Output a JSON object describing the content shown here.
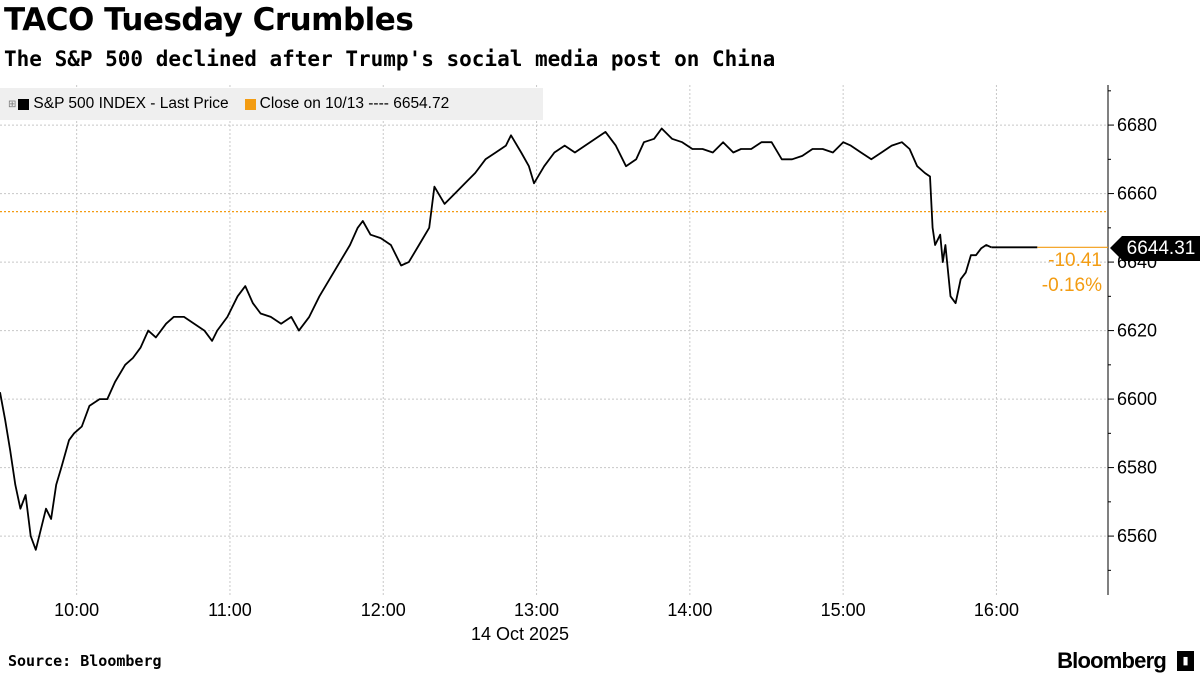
{
  "header": {
    "title": "TACO Tuesday Crumbles",
    "subtitle": "The S&P 500 declined after Trump's social media post on China"
  },
  "footer": {
    "source": "Source: Bloomberg",
    "logo": "Bloomberg"
  },
  "colors": {
    "series": "#000000",
    "reference": "#f39c12",
    "grid": "#cccccc",
    "legend_bg": "#efefef"
  },
  "chart_data": {
    "type": "line",
    "title": "TACO Tuesday Crumbles",
    "subtitle": "The S&P 500 declined after Trump's social media post on China",
    "xlabel": "14 Oct 2025",
    "ylabel": "",
    "x_unit": "minutes since 09:30",
    "xlim": [
      0,
      406
    ],
    "ylim": [
      6542.8,
      6691.7
    ],
    "grid": true,
    "legend_position": "top-left",
    "legend": [
      "S&P 500 INDEX - Last Price",
      "Close on 10/13 ---- 6654.72"
    ],
    "x_ticks": [
      {
        "label": "10:00",
        "t": 30
      },
      {
        "label": "11:00",
        "t": 90
      },
      {
        "label": "12:00",
        "t": 150
      },
      {
        "label": "13:00",
        "t": 210
      },
      {
        "label": "14:00",
        "t": 270
      },
      {
        "label": "15:00",
        "t": 330
      },
      {
        "label": "16:00",
        "t": 390
      }
    ],
    "y_ticks": [
      6560,
      6580,
      6600,
      6620,
      6640,
      6660,
      6680
    ],
    "reference_line": {
      "name": "Close on 10/13",
      "value": 6654.72
    },
    "last_price": {
      "value": "6644.31",
      "t_end": 406
    },
    "change": {
      "abs": "-10.41",
      "pct": "-0.16%"
    },
    "series": [
      {
        "name": "S&P 500 INDEX - Last Price",
        "t": [
          0,
          2,
          4,
          6,
          8,
          10,
          12,
          14,
          18,
          20,
          22,
          24,
          27,
          29,
          32,
          35,
          39,
          42,
          45,
          49,
          52,
          55,
          58,
          61,
          65,
          68,
          72,
          76,
          80,
          83,
          85,
          89,
          93,
          96,
          99,
          102,
          106,
          110,
          114,
          117,
          121,
          125,
          129,
          133,
          137,
          140,
          142,
          145,
          149,
          153,
          157,
          160,
          164,
          168,
          170,
          174,
          178,
          182,
          186,
          190,
          194,
          198,
          200,
          204,
          207,
          209,
          213,
          217,
          221,
          225,
          229,
          233,
          237,
          241,
          245,
          249,
          252,
          256,
          259,
          263,
          267,
          271,
          275,
          279,
          283,
          287,
          290,
          294,
          298,
          302,
          306,
          310,
          314,
          318,
          322,
          326,
          330,
          333,
          337,
          341,
          345,
          349,
          353,
          356,
          359,
          362,
          364,
          365,
          366,
          368,
          369,
          370,
          372,
          374,
          376,
          378,
          380,
          382,
          384,
          386,
          388
        ],
        "values": [
          6602,
          6594,
          6585,
          6575,
          6568,
          6572,
          6560,
          6556,
          6568,
          6565,
          6575,
          6580,
          6588,
          6590,
          6592,
          6598,
          6600,
          6600,
          6605,
          6610,
          6612,
          6615,
          6620,
          6618,
          6622,
          6624,
          6624,
          6622,
          6620,
          6617,
          6620,
          6624,
          6630,
          6633,
          6628,
          6625,
          6624,
          6622,
          6624,
          6620,
          6624,
          6630,
          6635,
          6640,
          6645,
          6650,
          6652,
          6648,
          6647,
          6645,
          6639,
          6640,
          6645,
          6650,
          6662,
          6657,
          6660,
          6663,
          6666,
          6670,
          6672,
          6674,
          6677,
          6672,
          6668,
          6663,
          6668,
          6672,
          6674,
          6672,
          6674,
          6676,
          6678,
          6674,
          6668,
          6670,
          6675,
          6676,
          6679,
          6676,
          6675,
          6673,
          6673,
          6672,
          6675,
          6672,
          6673,
          6673,
          6675,
          6675,
          6670,
          6670,
          6671,
          6673,
          6673,
          6672,
          6675,
          6674,
          6672,
          6670,
          6672,
          6674,
          6675,
          6673,
          6668,
          6666,
          6665,
          6650,
          6645,
          6648,
          6640,
          6645,
          6630,
          6628,
          6635,
          6637,
          6642,
          6642,
          6644,
          6645,
          6644.31
        ]
      }
    ]
  }
}
